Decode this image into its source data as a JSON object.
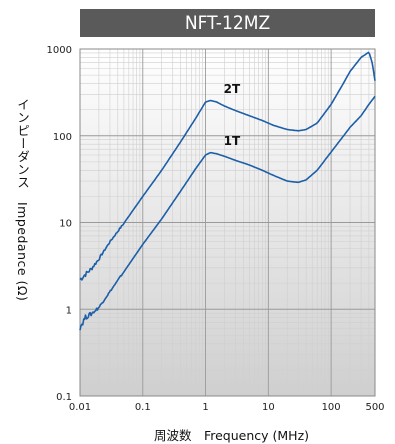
{
  "chart_data": {
    "type": "line",
    "title": "NFT-12MZ",
    "xlabel": "周波数　Frequency (MHz)",
    "ylabel": "インピーダンス　Impedance (Ω)",
    "xscale": "log",
    "yscale": "log",
    "xlim": [
      0.01,
      500
    ],
    "ylim": [
      0.1,
      1000
    ],
    "x_ticks": [
      "0.01",
      "0.1",
      "1",
      "10",
      "100",
      "500"
    ],
    "y_ticks": [
      "0.1",
      "1",
      "10",
      "100",
      "1000"
    ],
    "grid": true,
    "series": [
      {
        "name": "2T",
        "color": "#1c5ea8",
        "x": [
          0.01,
          0.012,
          0.015,
          0.02,
          0.03,
          0.05,
          0.1,
          0.2,
          0.4,
          0.7,
          1.0,
          1.2,
          1.5,
          2,
          3,
          5,
          8,
          12,
          20,
          30,
          40,
          60,
          100,
          150,
          200,
          300,
          400,
          450,
          500
        ],
        "y": [
          2.2,
          2.5,
          2.9,
          3.8,
          6.0,
          9.8,
          20,
          40,
          85,
          160,
          245,
          255,
          245,
          220,
          195,
          170,
          150,
          132,
          118,
          114,
          118,
          140,
          230,
          380,
          550,
          800,
          920,
          700,
          430
        ]
      },
      {
        "name": "1T",
        "color": "#1c5ea8",
        "x": [
          0.01,
          0.011,
          0.012,
          0.015,
          0.02,
          0.03,
          0.05,
          0.1,
          0.2,
          0.4,
          0.7,
          1.0,
          1.2,
          1.5,
          2,
          3,
          5,
          8,
          12,
          20,
          30,
          40,
          60,
          100,
          150,
          200,
          300,
          400,
          500
        ],
        "y": [
          0.62,
          0.7,
          0.8,
          0.88,
          1.05,
          1.6,
          2.7,
          5.6,
          11,
          23,
          42,
          60,
          64,
          62,
          58,
          52,
          46,
          40,
          35,
          30,
          29,
          31,
          40,
          65,
          95,
          125,
          170,
          230,
          285
        ]
      }
    ]
  }
}
